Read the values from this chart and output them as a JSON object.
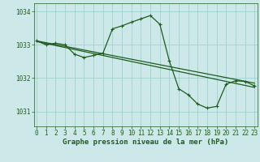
{
  "background_color": "#cce8e8",
  "grid_color": "#99cccc",
  "line_color": "#1f5c1f",
  "xlabel": "Graphe pression niveau de la mer (hPa)",
  "xlabel_fontsize": 6.5,
  "tick_fontsize": 5.5,
  "xlim": [
    -0.3,
    23.3
  ],
  "ylim": [
    1030.55,
    1034.25
  ],
  "yticks": [
    1031,
    1032,
    1033,
    1034
  ],
  "xticks": [
    0,
    1,
    2,
    3,
    4,
    5,
    6,
    7,
    8,
    9,
    10,
    11,
    12,
    13,
    14,
    15,
    16,
    17,
    18,
    19,
    20,
    21,
    22,
    23
  ],
  "trend1_x": [
    0,
    23
  ],
  "trend1_y": [
    1033.12,
    1031.85
  ],
  "trend2_x": [
    0,
    23
  ],
  "trend2_y": [
    1033.1,
    1031.72
  ],
  "main_x": [
    0,
    1,
    2,
    3,
    4,
    5,
    6,
    7,
    8,
    9,
    10,
    11,
    12,
    13,
    14,
    15,
    16,
    17,
    18,
    19,
    20,
    21,
    22,
    23
  ],
  "main_y": [
    1033.12,
    1033.0,
    1033.05,
    1033.0,
    1032.72,
    1032.62,
    1032.68,
    1032.75,
    1033.48,
    1033.57,
    1033.68,
    1033.78,
    1033.88,
    1033.62,
    1032.52,
    1031.68,
    1031.5,
    1031.22,
    1031.1,
    1031.15,
    1031.82,
    1031.92,
    1031.9,
    1031.77
  ]
}
